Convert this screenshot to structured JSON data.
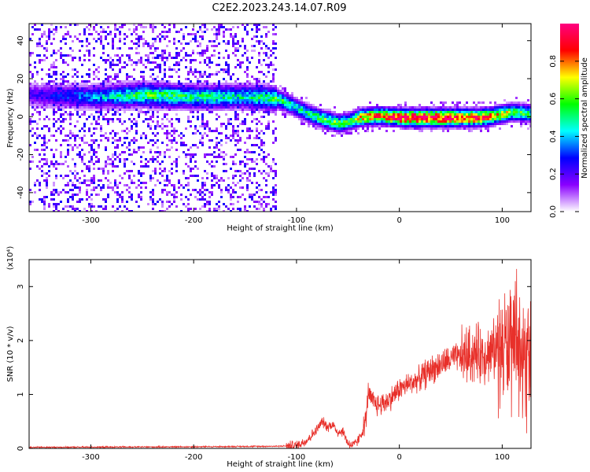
{
  "title": "C2E2.2023.243.14.07.R09",
  "chart_data": [
    {
      "type": "heatmap",
      "xlabel": "Height of straight line (km)",
      "ylabel": "Frequency (Hz)",
      "xlim": [
        -360,
        128
      ],
      "ylim": [
        -50,
        49
      ],
      "xticks": [
        -300,
        -200,
        -100,
        0,
        100
      ],
      "yticks": [
        -40,
        -20,
        0,
        20,
        40
      ],
      "colorbar": {
        "label": "Normalized spectral amplitude",
        "range": [
          0,
          1
        ],
        "ticks": [
          "0.0",
          "0.2",
          "0.4",
          "0.6",
          "0.8"
        ],
        "colors": [
          "#ffffff",
          "#8a00ff",
          "#0000ff",
          "#00ffff",
          "#00ff00",
          "#ffff00",
          "#ff0000",
          "#ff0080"
        ]
      },
      "ridge": {
        "x": [
          -360,
          -300,
          -250,
          -200,
          -150,
          -120,
          -100,
          -80,
          -60,
          -50,
          -40,
          -20,
          0,
          40,
          80,
          100,
          110,
          128
        ],
        "f": [
          12,
          11,
          12,
          11,
          11,
          10,
          5,
          0,
          -3,
          -2,
          0,
          1,
          0,
          0,
          0,
          2,
          3,
          2
        ],
        "amp": [
          0.2,
          0.35,
          0.55,
          0.5,
          0.45,
          0.55,
          0.45,
          0.55,
          0.6,
          0.55,
          0.7,
          0.8,
          0.95,
          0.95,
          0.85,
          0.7,
          0.6,
          0.5
        ]
      }
    },
    {
      "type": "line",
      "xlabel": "Height of straight line (km)",
      "ylabel": "SNR (10 * v/v)",
      "scale_label": "(x10⁴)",
      "xlim": [
        -360,
        128
      ],
      "ylim": [
        0,
        3.5
      ],
      "xticks": [
        -300,
        -200,
        -100,
        0,
        100
      ],
      "yticks": [
        0,
        1,
        2,
        3
      ],
      "color": "#e8302a",
      "series": [
        {
          "x": [
            -360,
            -200,
            -120,
            -100,
            -90,
            -80,
            -75,
            -70,
            -65,
            -60,
            -55,
            -50,
            -45,
            -40,
            -35,
            -32,
            -30,
            -28,
            -25,
            -20,
            -15,
            -10,
            0,
            10,
            20,
            30,
            40,
            50,
            60,
            70,
            80,
            90,
            100,
            105,
            110,
            115,
            120,
            125,
            128
          ],
          "y": [
            0.02,
            0.03,
            0.04,
            0.05,
            0.15,
            0.35,
            0.5,
            0.4,
            0.45,
            0.3,
            0.32,
            0.1,
            0.05,
            0.15,
            0.35,
            0.6,
            1.1,
            0.9,
            0.85,
            0.8,
            0.85,
            0.9,
            1.1,
            1.2,
            1.3,
            1.45,
            1.55,
            1.65,
            1.7,
            1.75,
            1.75,
            1.8,
            1.85,
            1.9,
            1.7,
            1.9,
            1.5,
            1.6,
            1.2
          ]
        }
      ]
    }
  ]
}
